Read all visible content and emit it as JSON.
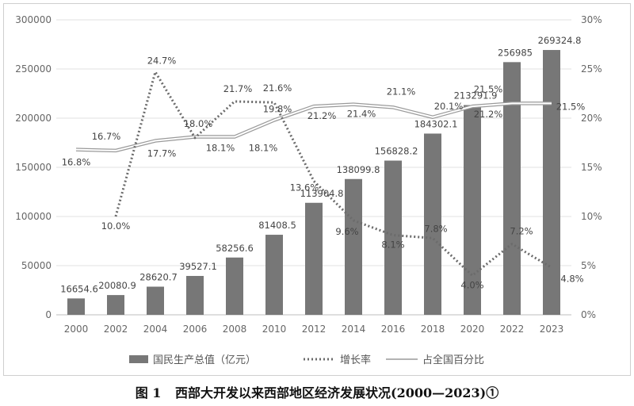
{
  "caption": {
    "figure_no": "图 1",
    "text": "西部大开发以来西部地区经济发展状况(2000—2023)①"
  },
  "chart_data": {
    "type": "bar",
    "categories": [
      "2000",
      "2002",
      "2004",
      "2006",
      "2008",
      "2010",
      "2012",
      "2014",
      "2016",
      "2018",
      "2020",
      "2022",
      "2023"
    ],
    "y_left": {
      "min": 0,
      "max": 300000,
      "ticks": [
        "0",
        "50000",
        "100000",
        "150000",
        "200000",
        "250000",
        "300000"
      ]
    },
    "y_right": {
      "min": 0,
      "max": 30,
      "ticks": [
        "0%",
        "5%",
        "10%",
        "15%",
        "20%",
        "25%",
        "30%"
      ]
    },
    "grid": true,
    "legend_position": "bottom",
    "colors": {
      "bar": "#777777",
      "growth": "#6b6b6b",
      "share": "#9a9a9a"
    },
    "series": [
      {
        "name": "国民生产总值（亿元）",
        "type": "bar",
        "axis": "left",
        "values": [
          16654.6,
          20080.9,
          28620.7,
          39527.1,
          58256.6,
          81408.5,
          113904.8,
          138099.8,
          156828.2,
          184302.1,
          213291.9,
          256985,
          269324.8
        ],
        "labels": [
          "16654.6",
          "20080.9",
          "28620.7",
          "39527.1",
          "58256.6",
          "81408.5",
          "113904.8",
          "138099.8",
          "156828.2",
          "184302.1",
          "213291.9",
          "256985",
          "269324.8"
        ]
      },
      {
        "name": "增长率",
        "type": "line",
        "style": "dotted",
        "axis": "right",
        "values": [
          null,
          10.0,
          24.7,
          18.0,
          21.7,
          21.6,
          13.6,
          9.6,
          8.1,
          7.8,
          4.0,
          7.2,
          4.8
        ],
        "labels": [
          "",
          "10.0%",
          "24.7%",
          "18.0%",
          "21.7%",
          "21.6%",
          "13.6%",
          "9.6%",
          "8.1%",
          "7.8%",
          "4.0%",
          "7.2%",
          "4.8%"
        ]
      },
      {
        "name": "占全国百分比",
        "type": "line",
        "style": "double",
        "axis": "right",
        "values": [
          16.8,
          16.7,
          17.7,
          18.1,
          18.1,
          19.8,
          21.2,
          21.4,
          21.1,
          20.1,
          21.2,
          21.5,
          21.5
        ],
        "labels": [
          "16.8%",
          "16.7%",
          "17.7%",
          "18.1%",
          "18.1%",
          "19.8%",
          "21.2%",
          "21.4%",
          "21.1%",
          "20.1%",
          "21.2%",
          "21.5%",
          "21.5%"
        ]
      }
    ]
  }
}
